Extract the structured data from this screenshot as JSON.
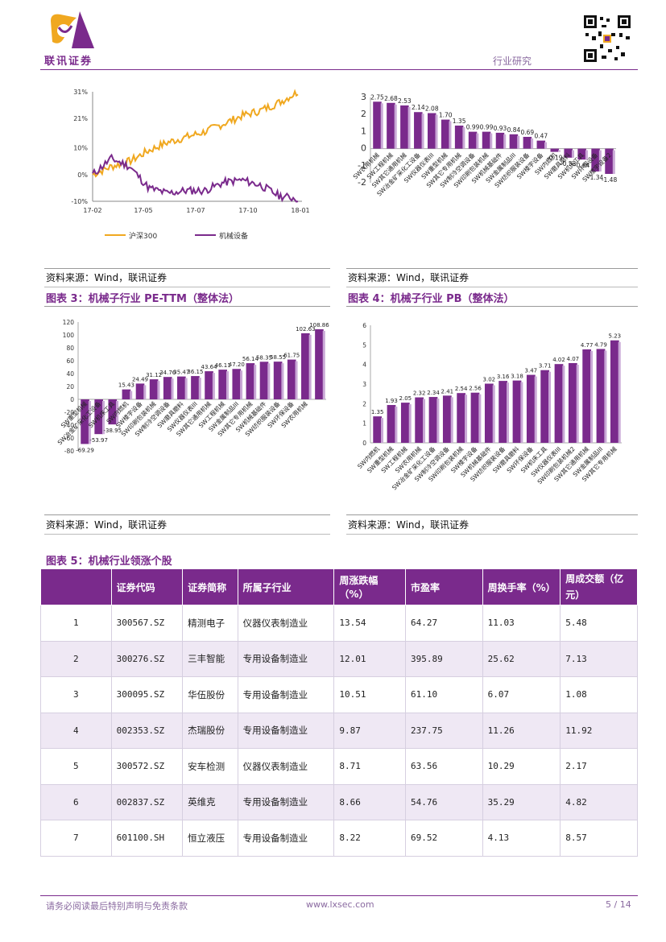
{
  "header": {
    "logo_text": "联讯证券",
    "section": "行业研究"
  },
  "chart1": {
    "yticks": [
      "31%",
      "21%",
      "10%",
      "0%",
      "-10%"
    ],
    "xticks": [
      "17-02",
      "17-05",
      "17-07",
      "17-10",
      "18-01"
    ],
    "legend": [
      "沪深300",
      "机械设备"
    ],
    "colors": [
      "#f0a820",
      "#7a2a8c"
    ]
  },
  "chart2": {
    "yticks": [
      "3",
      "2",
      "1",
      "0",
      "-1",
      "-2"
    ],
    "color": "#7a2a8c"
  },
  "chart3": {
    "yticks": [
      "120",
      "100",
      "80",
      "60",
      "40",
      "20",
      "0",
      "-20",
      "-40",
      "-60",
      "-80"
    ],
    "color": "#7a2a8c"
  },
  "chart4": {
    "yticks": [
      "6",
      "5",
      "4",
      "3",
      "2",
      "1",
      "0"
    ],
    "color": "#7a2a8c"
  },
  "captions": {
    "source1": "资料来源：Wind，联讯证券",
    "source2": "资料来源：Wind，联讯证券",
    "source3": "资料来源：Wind，联讯证券",
    "source4": "资料来源：Wind，联讯证券",
    "fig3": "图表 3：机械子行业 PE-TTM（整体法）",
    "fig4": "图表 4：机械子行业 PB（整体法）",
    "fig5": "图表 5：机械行业领涨个股"
  },
  "chart_data": [
    {
      "type": "line",
      "title": "",
      "x": [
        "17-02",
        "17-05",
        "17-07",
        "17-10",
        "18-01"
      ],
      "ylim": [
        -10,
        31
      ],
      "series": [
        {
          "name": "沪深300",
          "values": [
            0,
            6,
            13,
            22,
            31
          ]
        },
        {
          "name": "机械设备",
          "values": [
            0,
            -6,
            -7,
            -2,
            -9
          ]
        }
      ]
    },
    {
      "type": "bar",
      "categories": [
        "SW农用机械",
        "SW工程机械",
        "SW其它通用机械",
        "SW冶金矿采化工设备",
        "SW仪器仪表III",
        "SW重型机械",
        "SW其它专用机械",
        "SW制冷空调设备",
        "SW印刷包装机械",
        "SW机械基础件",
        "SW金属制品III",
        "SW纺织服装设备",
        "SW楼宇设备",
        "SW内燃机",
        "SW磨具磨料",
        "SW机床工具",
        "SW环保设备",
        "SW楼宇设备2"
      ],
      "labels": [
        "2.75",
        "2.68",
        "2.53",
        "2.14",
        "2.08",
        "1.70",
        "1.35",
        "0.99",
        "0.99",
        "0.93",
        "0.84",
        "0.69",
        "0.47",
        "-0.19",
        "-0.53",
        "-0.64",
        "-1.34",
        "-1.48"
      ],
      "values": [
        2.75,
        2.68,
        2.53,
        2.14,
        2.08,
        1.7,
        1.35,
        0.99,
        0.99,
        0.93,
        0.84,
        0.69,
        0.47,
        -0.19,
        -0.53,
        -0.64,
        -1.34,
        -1.48
      ],
      "ylim": [
        -2,
        3
      ]
    },
    {
      "type": "bar",
      "title": "机械子行业 PE-TTM（整体法）",
      "categories": [
        "SW重型机械",
        "SW冶金矿采化工设备",
        "SW机床工具",
        "SW内燃机",
        "SW楼宇设备",
        "SW印刷包装机械",
        "SW制冷空调设备",
        "SW磨具磨料",
        "SW仪器仪表III",
        "SW其它通用机械",
        "SW工程机械",
        "SW金属制品III",
        "SW其它专用机械",
        "SW机械基础件",
        "SW纺织服装设备",
        "SW环保设备",
        "SW农用机械"
      ],
      "labels": [
        "-69.29",
        "-53.97",
        "-38.95",
        "15.43",
        "24.49",
        "31.12",
        "34.76",
        "35.47",
        "36.15",
        "43.64",
        "46.11",
        "47.20",
        "56.14",
        "58.35",
        "58.55",
        "61.75",
        "102.63",
        "108.86"
      ],
      "values": [
        -69.29,
        -53.97,
        -38.95,
        15.43,
        24.49,
        31.12,
        34.76,
        35.47,
        36.15,
        43.64,
        46.11,
        47.2,
        56.14,
        58.35,
        58.55,
        61.75,
        102.63,
        108.86
      ],
      "ylim": [
        -80,
        120
      ]
    },
    {
      "type": "bar",
      "title": "机械子行业 PB（整体法）",
      "categories": [
        "SW内燃机",
        "SW重型机械",
        "SW工程机械",
        "SW农用机械",
        "SW冶金矿采化工设备",
        "SW制冷空调设备",
        "SW印刷包装机械",
        "SW楼宇设备",
        "SW机械基础件",
        "SW纺织服装设备",
        "SW磨具磨料",
        "SW环保设备",
        "SW机床工具",
        "SW仪器仪表III",
        "SW印刷包装机械2",
        "SW其它通用机械",
        "SW金属制品III",
        "SW其它专用机械"
      ],
      "labels": [
        "1.35",
        "1.93",
        "2.05",
        "2.32",
        "2.34",
        "2.41",
        "2.54",
        "2.56",
        "3.02",
        "3.16",
        "3.18",
        "3.47",
        "3.71",
        "4.02",
        "4.07",
        "4.77",
        "4.79",
        "5.23"
      ],
      "values": [
        1.35,
        1.93,
        2.05,
        2.32,
        2.34,
        2.41,
        2.54,
        2.56,
        3.02,
        3.16,
        3.18,
        3.47,
        3.71,
        4.02,
        4.07,
        4.77,
        4.79,
        5.23
      ],
      "ylim": [
        0,
        6
      ]
    }
  ],
  "table": {
    "headers": [
      "",
      "证券代码",
      "证券简称",
      "所属子行业",
      "周涨跌幅（%）",
      "市盈率",
      "周换手率（%）",
      "周成交额（亿元）"
    ],
    "rows": [
      [
        "1",
        "300567.SZ",
        "精测电子",
        "仪器仪表制造业",
        "13.54",
        "64.27",
        "11.03",
        "5.48"
      ],
      [
        "2",
        "300276.SZ",
        "三丰智能",
        "专用设备制造业",
        "12.01",
        "395.89",
        "25.62",
        "7.13"
      ],
      [
        "3",
        "300095.SZ",
        "华伍股份",
        "专用设备制造业",
        "10.51",
        "61.10",
        "6.07",
        "1.08"
      ],
      [
        "4",
        "002353.SZ",
        "杰瑞股份",
        "专用设备制造业",
        "9.87",
        "237.75",
        "11.26",
        "11.92"
      ],
      [
        "5",
        "300572.SZ",
        "安车检测",
        "仪器仪表制造业",
        "8.71",
        "63.56",
        "10.29",
        "2.17"
      ],
      [
        "6",
        "002837.SZ",
        "英维克",
        "专用设备制造业",
        "8.66",
        "54.76",
        "35.29",
        "4.82"
      ],
      [
        "7",
        "601100.SH",
        "恒立液压",
        "专用设备制造业",
        "8.22",
        "69.52",
        "4.13",
        "8.57"
      ]
    ]
  },
  "footer": {
    "disclaimer": "请务必阅读最后特别声明与免责条款",
    "url": "www.lxsec.com",
    "page": "5 / 14"
  }
}
